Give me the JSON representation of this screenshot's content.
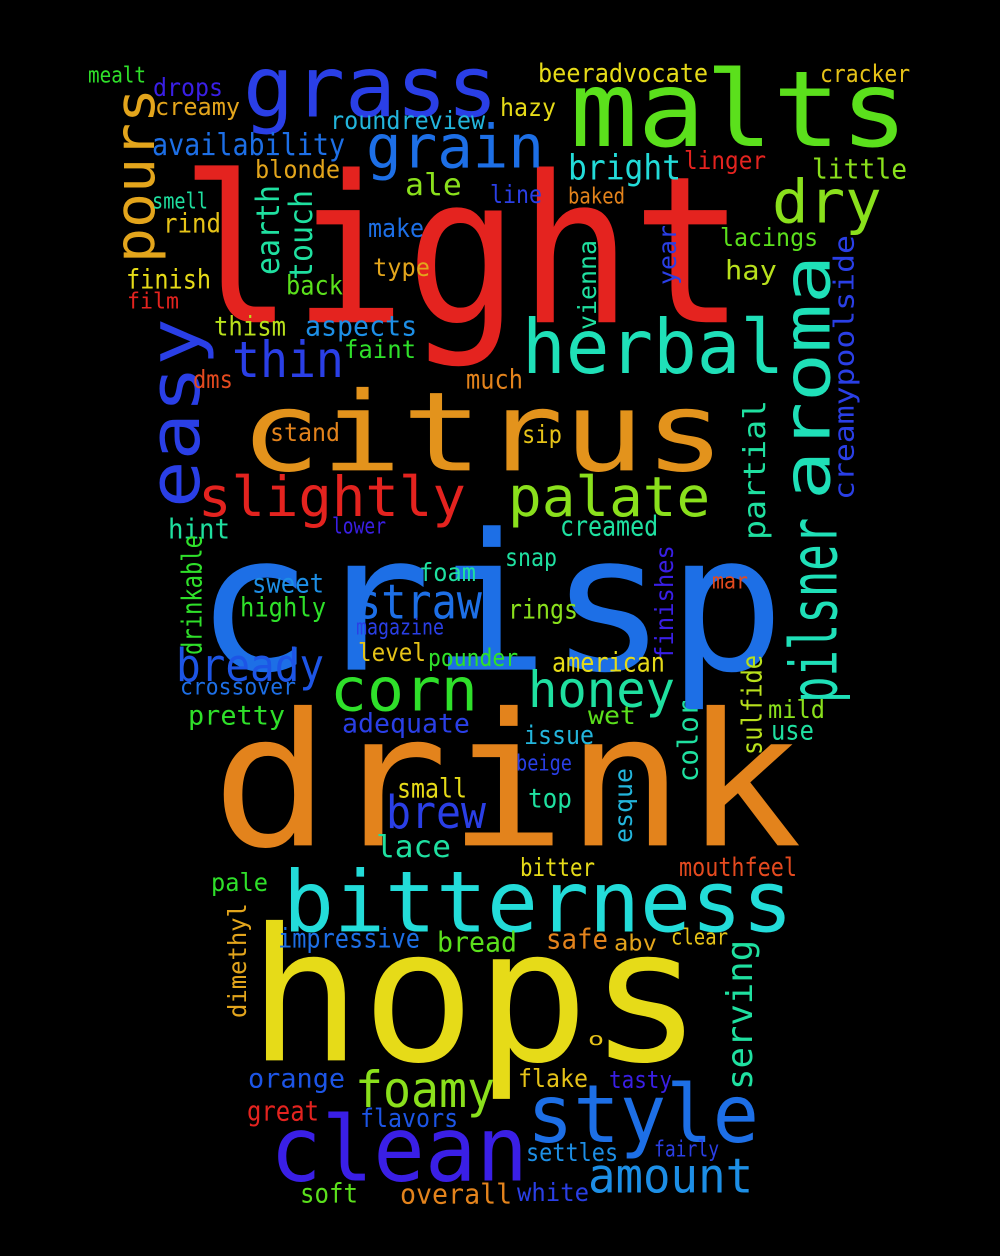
{
  "words": [
    {
      "text": "light",
      "color": "#e4231f"
    },
    {
      "text": "crisp",
      "color": "#1d6fe6"
    },
    {
      "text": "drink",
      "color": "#e3831c"
    },
    {
      "text": "hops",
      "color": "#e6db18"
    },
    {
      "text": "citrus",
      "color": "#e3931c"
    },
    {
      "text": "malts",
      "color": "#5be01c"
    },
    {
      "text": "grass",
      "color": "#2a3fe6"
    },
    {
      "text": "bitterness",
      "color": "#23dcd9"
    },
    {
      "text": "clean",
      "color": "#3a1fe6"
    },
    {
      "text": "style",
      "color": "#1d6fe6"
    },
    {
      "text": "herbal",
      "color": "#1fe0b8"
    },
    {
      "text": "aroma",
      "color": "#1fe0b8"
    },
    {
      "text": "easy",
      "color": "#2a3fe6"
    },
    {
      "text": "pilsner",
      "color": "#1fe0b8"
    },
    {
      "text": "grain",
      "color": "#1d6fe6"
    },
    {
      "text": "palate",
      "color": "#8ae01c"
    },
    {
      "text": "slightly",
      "color": "#e4231f"
    },
    {
      "text": "corn",
      "color": "#2fe02a"
    },
    {
      "text": "honey",
      "color": "#1fe0a0"
    },
    {
      "text": "dry",
      "color": "#8ae01c"
    },
    {
      "text": "pours",
      "color": "#e3a51c"
    },
    {
      "text": "thin",
      "color": "#2a3fe6"
    },
    {
      "text": "straw",
      "color": "#1d6fe6"
    },
    {
      "text": "bready",
      "color": "#1d55e6"
    },
    {
      "text": "amount",
      "color": "#1d8fe6"
    },
    {
      "text": "foamy",
      "color": "#8ae01c"
    },
    {
      "text": "brew",
      "color": "#2a3fe6"
    },
    {
      "text": "creamypoolside",
      "color": "#2a3fe6"
    },
    {
      "text": "bright",
      "color": "#23dcd9"
    },
    {
      "text": "ale",
      "color": "#8ae01c"
    },
    {
      "text": "beeradvocate",
      "color": "#e6db18"
    },
    {
      "text": "cracker",
      "color": "#e6c318"
    },
    {
      "text": "mealt",
      "color": "#2fe02a"
    },
    {
      "text": "drops",
      "color": "#3a1fe6"
    },
    {
      "text": "creamy",
      "color": "#e3a51c"
    },
    {
      "text": "roundreview",
      "color": "#23b5dc"
    },
    {
      "text": "hazy",
      "color": "#e6db18"
    },
    {
      "text": "availability",
      "color": "#1d6fe6"
    },
    {
      "text": "linger",
      "color": "#e4231f"
    },
    {
      "text": "little",
      "color": "#8ae01c"
    },
    {
      "text": "blonde",
      "color": "#e3a51c"
    },
    {
      "text": "smell",
      "color": "#1fe0a0"
    },
    {
      "text": "line",
      "color": "#2a3fe6"
    },
    {
      "text": "baked",
      "color": "#e3831c"
    },
    {
      "text": "rind",
      "color": "#e6c318"
    },
    {
      "text": "earth",
      "color": "#1fe0a0"
    },
    {
      "text": "touch",
      "color": "#1fe0a0"
    },
    {
      "text": "make",
      "color": "#1d6fe6"
    },
    {
      "text": "lacings",
      "color": "#5be01c"
    },
    {
      "text": "type",
      "color": "#e3a51c"
    },
    {
      "text": "hay",
      "color": "#b8e01c"
    },
    {
      "text": "finish",
      "color": "#e6db18"
    },
    {
      "text": "film",
      "color": "#e4231f"
    },
    {
      "text": "back",
      "color": "#5be01c"
    },
    {
      "text": "thism",
      "color": "#b8e01c"
    },
    {
      "text": "aspects",
      "color": "#1d8fe6"
    },
    {
      "text": "faint",
      "color": "#2fe02a"
    },
    {
      "text": "dms",
      "color": "#e44a1f"
    },
    {
      "text": "much",
      "color": "#e3831c"
    },
    {
      "text": "stand",
      "color": "#e3831c"
    },
    {
      "text": "sip",
      "color": "#e6c318"
    },
    {
      "text": "vienna",
      "color": "#1fe0a0"
    },
    {
      "text": "year",
      "color": "#2a3fe6"
    },
    {
      "text": "partial",
      "color": "#1fe0a0"
    },
    {
      "text": "hint",
      "color": "#1fe0a0"
    },
    {
      "text": "lower",
      "color": "#3a1fe6"
    },
    {
      "text": "creamed",
      "color": "#1fe0a0"
    },
    {
      "text": "drinkable",
      "color": "#2fe02a"
    },
    {
      "text": "snap",
      "color": "#1fe0a0"
    },
    {
      "text": "foam",
      "color": "#1fe0a0"
    },
    {
      "text": "finishes",
      "color": "#3a1fe6"
    },
    {
      "text": "mar",
      "color": "#e44a1f"
    },
    {
      "text": "sweet",
      "color": "#1d8fe6"
    },
    {
      "text": "highly",
      "color": "#2fe02a"
    },
    {
      "text": "rings",
      "color": "#8ae01c"
    },
    {
      "text": "magazine",
      "color": "#2a3fe6"
    },
    {
      "text": "level",
      "color": "#e6c318"
    },
    {
      "text": "pounder",
      "color": "#2fe02a"
    },
    {
      "text": "american",
      "color": "#e6db18"
    },
    {
      "text": "crossover",
      "color": "#1d6fe6"
    },
    {
      "text": "pretty",
      "color": "#2fe02a"
    },
    {
      "text": "adequate",
      "color": "#2a3fe6"
    },
    {
      "text": "sulfide",
      "color": "#b8e01c"
    },
    {
      "text": "mild",
      "color": "#8ae01c"
    },
    {
      "text": "use",
      "color": "#1fe0a0"
    },
    {
      "text": "issue",
      "color": "#23b5dc"
    },
    {
      "text": "wet",
      "color": "#5be01c"
    },
    {
      "text": "color",
      "color": "#1fe0a0"
    },
    {
      "text": "beige",
      "color": "#2a3fe6"
    },
    {
      "text": "small",
      "color": "#e6db18"
    },
    {
      "text": "top",
      "color": "#1fe0a0"
    },
    {
      "text": "esque",
      "color": "#23b5dc"
    },
    {
      "text": "lace",
      "color": "#1fe0a0"
    },
    {
      "text": "bitter",
      "color": "#e6db18"
    },
    {
      "text": "mouthfeel",
      "color": "#e44a1f"
    },
    {
      "text": "pale",
      "color": "#2fe02a"
    },
    {
      "text": "dimethyl",
      "color": "#e3a51c"
    },
    {
      "text": "impressive",
      "color": "#1d6fe6"
    },
    {
      "text": "bread",
      "color": "#5be01c"
    },
    {
      "text": "safe",
      "color": "#e3831c"
    },
    {
      "text": "abv",
      "color": "#e3a51c"
    },
    {
      "text": "clear",
      "color": "#e6c318"
    },
    {
      "text": "serving",
      "color": "#1fe0a0"
    },
    {
      "text": "o",
      "color": "#e6c318"
    },
    {
      "text": "orange",
      "color": "#1d55e6"
    },
    {
      "text": "flake",
      "color": "#e6c318"
    },
    {
      "text": "tasty",
      "color": "#3a1fe6"
    },
    {
      "text": "great",
      "color": "#e4231f"
    },
    {
      "text": "flavors",
      "color": "#1d55e6"
    },
    {
      "text": "fairly",
      "color": "#2a3fe6"
    },
    {
      "text": "settles",
      "color": "#1d8fe6"
    },
    {
      "text": "soft",
      "color": "#5be01c"
    },
    {
      "text": "overall",
      "color": "#e3831c"
    },
    {
      "text": "white",
      "color": "#2a3fe6"
    }
  ]
}
